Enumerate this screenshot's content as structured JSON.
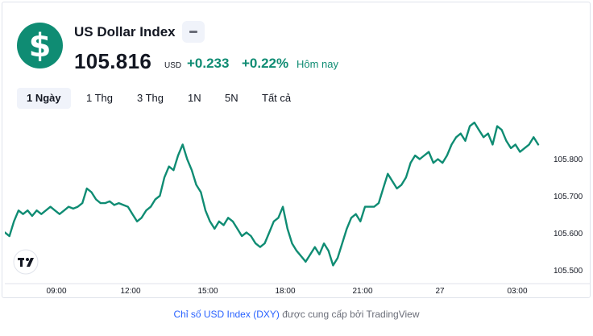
{
  "header": {
    "logo_symbol": "$",
    "name": "US Dollar Index",
    "price": "105.816",
    "currency": "USD",
    "change": "+0.233",
    "change_pct": "+0.22%",
    "session_label": "Hôm nay"
  },
  "tabs": [
    {
      "label": "1 Ngày",
      "active": true
    },
    {
      "label": "1 Thg",
      "active": false
    },
    {
      "label": "3 Thg",
      "active": false
    },
    {
      "label": "1N",
      "active": false
    },
    {
      "label": "5N",
      "active": false
    },
    {
      "label": "Tất cả",
      "active": false
    }
  ],
  "colors": {
    "accent": "#0f8c73",
    "link": "#2962ff"
  },
  "icons": {
    "minus": "minus-icon",
    "watermark": "tradingview-logo-icon"
  },
  "chart_data": {
    "type": "line",
    "x_tick_labels": [
      "09:00",
      "12:00",
      "15:00",
      "18:00",
      "21:00",
      "27",
      "03:00"
    ],
    "y_tick_labels": [
      "105.800",
      "105.700",
      "105.600",
      "105.500"
    ],
    "ylim": [
      105.47,
      105.91
    ],
    "series": [
      {
        "values": [
          105.59,
          105.58,
          105.62,
          105.65,
          105.64,
          105.65,
          105.635,
          105.65,
          105.64,
          105.65,
          105.66,
          105.65,
          105.64,
          105.65,
          105.66,
          105.655,
          105.66,
          105.67,
          105.71,
          105.7,
          105.68,
          105.67,
          105.67,
          105.675,
          105.665,
          105.67,
          105.665,
          105.66,
          105.64,
          105.62,
          105.63,
          105.65,
          105.66,
          105.68,
          105.69,
          105.74,
          105.77,
          105.76,
          105.8,
          105.83,
          105.79,
          105.76,
          105.72,
          105.7,
          105.65,
          105.62,
          105.6,
          105.62,
          105.61,
          105.63,
          105.62,
          105.6,
          105.58,
          105.59,
          105.58,
          105.56,
          105.55,
          105.56,
          105.59,
          105.62,
          105.63,
          105.66,
          105.6,
          105.56,
          105.54,
          105.525,
          105.51,
          105.53,
          105.55,
          105.53,
          105.56,
          105.54,
          105.5,
          105.52,
          105.56,
          105.6,
          105.63,
          105.64,
          105.62,
          105.66,
          105.66,
          105.66,
          105.67,
          105.71,
          105.75,
          105.73,
          105.71,
          105.72,
          105.74,
          105.78,
          105.8,
          105.79,
          105.8,
          105.81,
          105.78,
          105.79,
          105.78,
          105.8,
          105.83,
          105.85,
          105.86,
          105.84,
          105.88,
          105.89,
          105.87,
          105.85,
          105.86,
          105.83,
          105.88,
          105.87,
          105.84,
          105.82,
          105.83,
          105.81,
          105.82,
          105.83,
          105.85,
          105.83
        ]
      }
    ],
    "grid": false,
    "legend": "none"
  },
  "attribution": {
    "link_text": "Chỉ số USD Index (DXY)",
    "suffix": "được cung cấp bởi TradingView"
  }
}
